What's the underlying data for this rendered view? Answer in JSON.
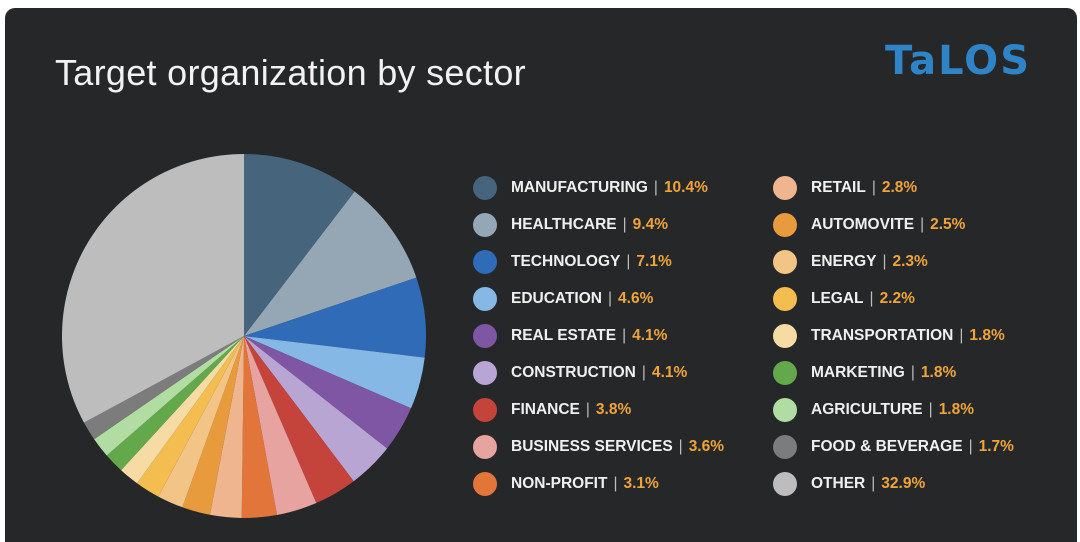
{
  "title": "Target organization by sector",
  "logo_text": "TaLOS",
  "colors": {
    "background": "#262728",
    "title": "#f2f2f2",
    "value": "#f0a43a",
    "logo": "#2f84c8"
  },
  "chart_data": {
    "type": "pie",
    "title": "Target organization by sector",
    "slices": [
      {
        "label": "MANUFACTURING",
        "value": 10.4,
        "value_label": "10.4%",
        "color": "#46647c"
      },
      {
        "label": "HEALTHCARE",
        "value": 9.4,
        "value_label": "9.4%",
        "color": "#95a6b4"
      },
      {
        "label": "TECHNOLOGY",
        "value": 7.1,
        "value_label": "7.1%",
        "color": "#2f6bb6"
      },
      {
        "label": "EDUCATION",
        "value": 4.6,
        "value_label": "4.6%",
        "color": "#86b8e6"
      },
      {
        "label": "REAL ESTATE",
        "value": 4.1,
        "value_label": "4.1%",
        "color": "#7e56a3"
      },
      {
        "label": "CONSTRUCTION",
        "value": 4.1,
        "value_label": "4.1%",
        "color": "#b9a5d3"
      },
      {
        "label": "FINANCE",
        "value": 3.8,
        "value_label": "3.8%",
        "color": "#c4443c"
      },
      {
        "label": "BUSINESS SERVICES",
        "value": 3.6,
        "value_label": "3.6%",
        "color": "#e6a3a0"
      },
      {
        "label": "NON-PROFIT",
        "value": 3.1,
        "value_label": "3.1%",
        "color": "#e2753a"
      },
      {
        "label": "RETAIL",
        "value": 2.8,
        "value_label": "2.8%",
        "color": "#efb58f"
      },
      {
        "label": "AUTOMOVITE",
        "value": 2.5,
        "value_label": "2.5%",
        "color": "#e89b3c"
      },
      {
        "label": "ENERGY",
        "value": 2.3,
        "value_label": "2.3%",
        "color": "#f2c486"
      },
      {
        "label": "LEGAL",
        "value": 2.2,
        "value_label": "2.2%",
        "color": "#f3bd4f"
      },
      {
        "label": "TRANSPORTATION",
        "value": 1.8,
        "value_label": "1.8%",
        "color": "#f6dca4"
      },
      {
        "label": "MARKETING",
        "value": 1.8,
        "value_label": "1.8%",
        "color": "#64a84c"
      },
      {
        "label": "AGRICULTURE",
        "value": 1.8,
        "value_label": "1.8%",
        "color": "#b1dca2"
      },
      {
        "label": "FOOD & BEVERAGE",
        "value": 1.7,
        "value_label": "1.7%",
        "color": "#7c7c7c"
      },
      {
        "label": "OTHER",
        "value": 32.9,
        "value_label": "32.9%",
        "color": "#bdbdbd"
      }
    ]
  }
}
